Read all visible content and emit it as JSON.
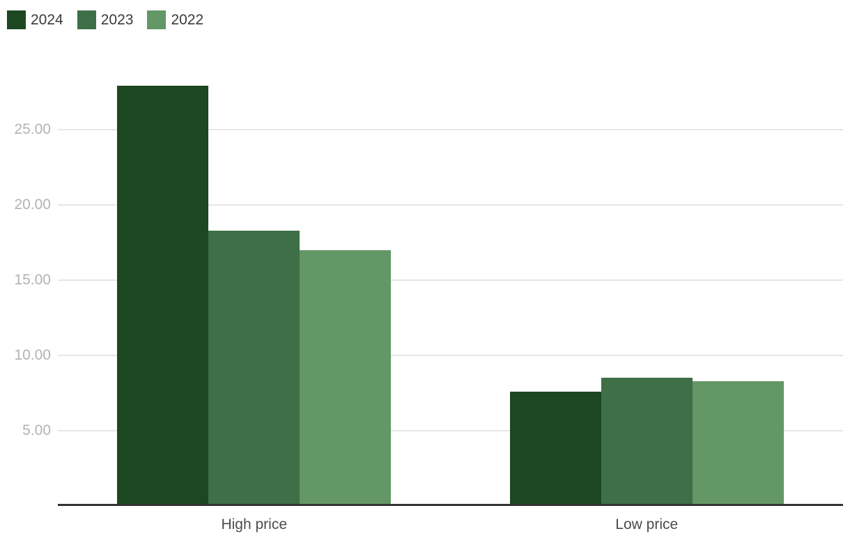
{
  "chart_data": {
    "type": "bar",
    "title": "",
    "xlabel": "",
    "ylabel": "",
    "categories": [
      "High price",
      "Low price"
    ],
    "series": [
      {
        "name": "2024",
        "color": "#1c4721",
        "values": [
          27.9,
          7.6
        ]
      },
      {
        "name": "2023",
        "color": "#3f6f46",
        "values": [
          18.3,
          8.5
        ]
      },
      {
        "name": "2022",
        "color": "#649766",
        "values": [
          17.0,
          8.3
        ]
      }
    ],
    "ylim": [
      0,
      30
    ],
    "yticks": [
      {
        "value": 5,
        "label": "5.00"
      },
      {
        "value": 10,
        "label": "10.00"
      },
      {
        "value": 15,
        "label": "15.00"
      },
      {
        "value": 20,
        "label": "20.00"
      },
      {
        "value": 25,
        "label": "25.00"
      }
    ],
    "grid": true,
    "legend_position": "top-left"
  },
  "colors": {
    "background": "#ffffff",
    "axis_line": "#333333",
    "gridline": "#e6e6e6",
    "ytick_label": "#b3b3b3",
    "category_label": "#4b4b4b",
    "legend_label": "#3a3a3a"
  }
}
